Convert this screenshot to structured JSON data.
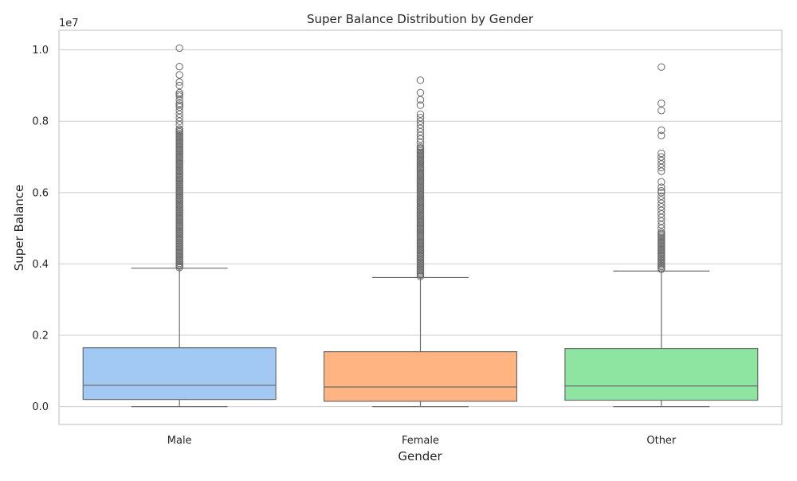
{
  "chart_data": {
    "type": "box",
    "title": "Super Balance Distribution by Gender",
    "xlabel": "Gender",
    "ylabel": "Super Balance",
    "y_scale_label": "1e7",
    "y_scale_factor": 10000000,
    "ylim": [
      -0.05,
      1.055
    ],
    "yticks": [
      0.0,
      0.2,
      0.4,
      0.6,
      0.8,
      1.0
    ],
    "ytick_labels": [
      "0.0",
      "0.2",
      "0.4",
      "0.6",
      "0.8",
      "1.0"
    ],
    "grid": true,
    "categories": [
      "Male",
      "Female",
      "Other"
    ],
    "colors": {
      "Male": "#a1c9f4",
      "Female": "#ffb482",
      "Other": "#8de5a1",
      "box_edge": "#6b6b6b",
      "grid": "#cccccc",
      "frame": "#cccccc"
    },
    "boxes": [
      {
        "category": "Male",
        "whisker_low": 0.0,
        "q1": 0.02,
        "median": 0.06,
        "q3": 0.165,
        "whisker_high": 0.388,
        "outliers_dense_range": [
          0.39,
          0.78
        ],
        "outliers": [
          0.79,
          0.8,
          0.81,
          0.82,
          0.83,
          0.84,
          0.845,
          0.85,
          0.86,
          0.87,
          0.875,
          0.88,
          0.9,
          0.91,
          0.93,
          0.953,
          1.005
        ]
      },
      {
        "category": "Female",
        "whisker_low": 0.0,
        "q1": 0.015,
        "median": 0.055,
        "q3": 0.154,
        "whisker_high": 0.362,
        "outliers_dense_range": [
          0.365,
          0.73
        ],
        "outliers": [
          0.74,
          0.75,
          0.76,
          0.77,
          0.78,
          0.79,
          0.8,
          0.81,
          0.82,
          0.845,
          0.86,
          0.88,
          0.915
        ]
      },
      {
        "category": "Other",
        "whisker_low": 0.0,
        "q1": 0.018,
        "median": 0.058,
        "q3": 0.163,
        "whisker_high": 0.38,
        "outliers_dense_range": [
          0.385,
          0.49
        ],
        "outliers": [
          0.5,
          0.51,
          0.52,
          0.53,
          0.54,
          0.55,
          0.56,
          0.57,
          0.58,
          0.59,
          0.6,
          0.605,
          0.615,
          0.63,
          0.66,
          0.67,
          0.68,
          0.69,
          0.7,
          0.71,
          0.76,
          0.775,
          0.83,
          0.85,
          0.952
        ]
      }
    ]
  }
}
